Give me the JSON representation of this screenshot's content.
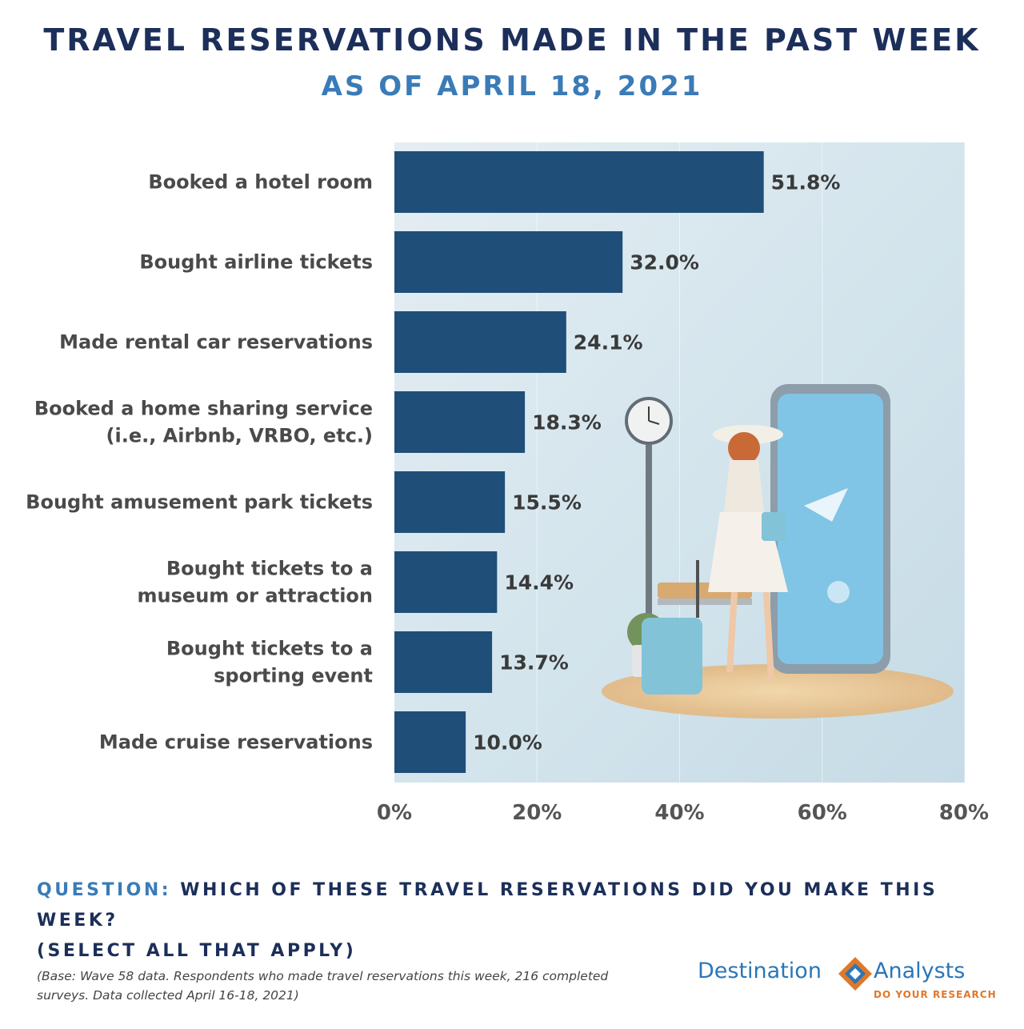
{
  "header": {
    "title": "TRAVEL RESERVATIONS MADE IN THE PAST WEEK",
    "subtitle": "AS OF APRIL 18, 2021"
  },
  "chart_data": {
    "type": "bar",
    "orientation": "horizontal",
    "categories": [
      [
        "Booked a hotel room"
      ],
      [
        "Bought airline tickets"
      ],
      [
        "Made rental car reservations"
      ],
      [
        "Booked a home sharing service",
        "(i.e., Airbnb, VRBO, etc.)"
      ],
      [
        "Bought amusement park tickets"
      ],
      [
        "Bought tickets to a",
        "museum or attraction"
      ],
      [
        "Bought tickets to a",
        "sporting event"
      ],
      [
        "Made cruise reservations"
      ]
    ],
    "values": [
      51.8,
      32.0,
      24.1,
      18.3,
      15.5,
      14.4,
      13.7,
      10.0
    ],
    "value_labels": [
      "51.8%",
      "32.0%",
      "24.1%",
      "18.3%",
      "15.5%",
      "14.4%",
      "13.7%",
      "10.0%"
    ],
    "xlim": [
      0,
      80
    ],
    "xticks": [
      0,
      20,
      40,
      60,
      80
    ],
    "xtick_labels": [
      "0%",
      "20%",
      "40%",
      "60%",
      "80%"
    ],
    "bar_color": "#1f4e79",
    "grid": true
  },
  "question": {
    "prefix": "QUESTION:",
    "line1": " WHICH OF THESE TRAVEL RESERVATIONS DID YOU MAKE THIS WEEK?",
    "line2": "(SELECT ALL THAT APPLY)"
  },
  "footnote": {
    "line1": "(Base: Wave 58 data. Respondents who made travel reservations this week, 216 completed",
    "line2": "surveys. Data collected April 16-18, 2021)"
  },
  "logo": {
    "left_word": "Destination",
    "right_word": "Analysts",
    "tagline": "DO YOUR RESEARCH"
  },
  "colors": {
    "title": "#1c2f5a",
    "subtitle": "#3a7bb8",
    "bar": "#1f4e79",
    "logo_blue": "#2a76b8",
    "logo_orange": "#e0782a"
  }
}
